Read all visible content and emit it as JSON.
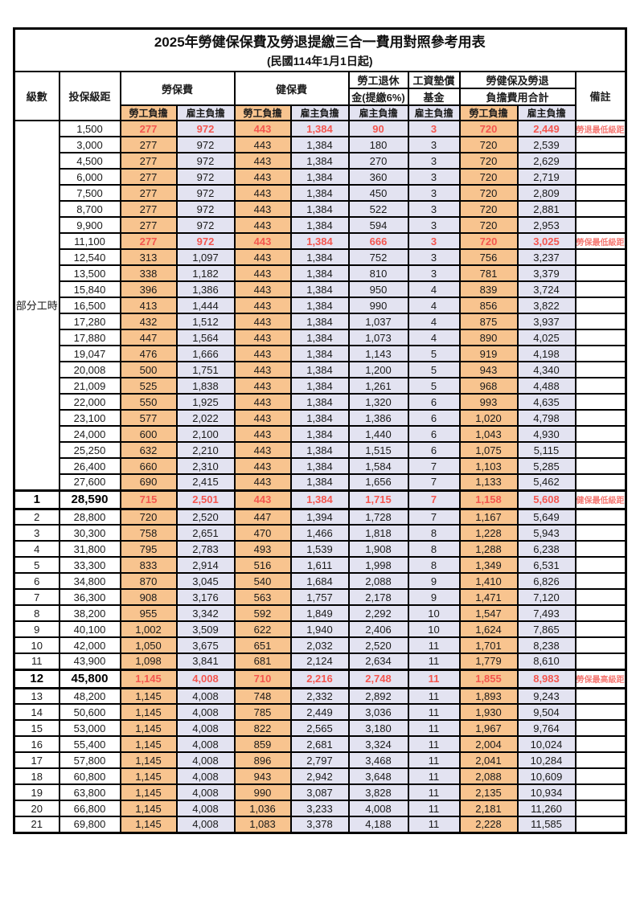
{
  "table": {
    "title": "2025年勞健保保費及勞退提繳三合一費用對照參考用表",
    "subtitle": "(民國114年1月1日起)",
    "headers": {
      "level": "級數",
      "bracket": "投保級距",
      "labor_fee": "勞保費",
      "health_fee": "健保費",
      "pension_line1": "勞工退休",
      "pension_line2": "金(提繳6%)",
      "wage_fund_line1": "工資墊償",
      "wage_fund_line2": "基金",
      "total_line1": "勞健保及勞退",
      "total_line2": "負擔費用合計",
      "employee": "勞工負擔",
      "employer": "雇主負擔",
      "remark": "備註"
    },
    "group_label": "部分工時",
    "group_rowspan": 23,
    "colors": {
      "employee_bg": "#f8c48f",
      "employer_bg": "#e3e3f1",
      "highlight_text": "#f4564f",
      "remark_text": "#f57a74",
      "border": "#000000"
    },
    "rows": [
      {
        "level": "",
        "bracket": "1,500",
        "v": [
          "277",
          "972",
          "443",
          "1,384",
          "90",
          "3",
          "720",
          "2,449"
        ],
        "remark": "勞退最低級距",
        "hl": true,
        "strong": false
      },
      {
        "level": "",
        "bracket": "3,000",
        "v": [
          "277",
          "972",
          "443",
          "1,384",
          "180",
          "3",
          "720",
          "2,539"
        ],
        "remark": "",
        "hl": false,
        "strong": false
      },
      {
        "level": "",
        "bracket": "4,500",
        "v": [
          "277",
          "972",
          "443",
          "1,384",
          "270",
          "3",
          "720",
          "2,629"
        ],
        "remark": "",
        "hl": false,
        "strong": false
      },
      {
        "level": "",
        "bracket": "6,000",
        "v": [
          "277",
          "972",
          "443",
          "1,384",
          "360",
          "3",
          "720",
          "2,719"
        ],
        "remark": "",
        "hl": false,
        "strong": false
      },
      {
        "level": "",
        "bracket": "7,500",
        "v": [
          "277",
          "972",
          "443",
          "1,384",
          "450",
          "3",
          "720",
          "2,809"
        ],
        "remark": "",
        "hl": false,
        "strong": false
      },
      {
        "level": "",
        "bracket": "8,700",
        "v": [
          "277",
          "972",
          "443",
          "1,384",
          "522",
          "3",
          "720",
          "2,881"
        ],
        "remark": "",
        "hl": false,
        "strong": false
      },
      {
        "level": "",
        "bracket": "9,900",
        "v": [
          "277",
          "972",
          "443",
          "1,384",
          "594",
          "3",
          "720",
          "2,953"
        ],
        "remark": "",
        "hl": false,
        "strong": false
      },
      {
        "level": "",
        "bracket": "11,100",
        "v": [
          "277",
          "972",
          "443",
          "1,384",
          "666",
          "3",
          "720",
          "3,025"
        ],
        "remark": "勞保最低級距",
        "hl": true,
        "strong": false
      },
      {
        "level": "",
        "bracket": "12,540",
        "v": [
          "313",
          "1,097",
          "443",
          "1,384",
          "752",
          "3",
          "756",
          "3,237"
        ],
        "remark": "",
        "hl": false,
        "strong": false
      },
      {
        "level": "",
        "bracket": "13,500",
        "v": [
          "338",
          "1,182",
          "443",
          "1,384",
          "810",
          "3",
          "781",
          "3,379"
        ],
        "remark": "",
        "hl": false,
        "strong": false
      },
      {
        "level": "",
        "bracket": "15,840",
        "v": [
          "396",
          "1,386",
          "443",
          "1,384",
          "950",
          "4",
          "839",
          "3,724"
        ],
        "remark": "",
        "hl": false,
        "strong": false
      },
      {
        "level": "",
        "bracket": "16,500",
        "v": [
          "413",
          "1,444",
          "443",
          "1,384",
          "990",
          "4",
          "856",
          "3,822"
        ],
        "remark": "",
        "hl": false,
        "strong": false
      },
      {
        "level": "",
        "bracket": "17,280",
        "v": [
          "432",
          "1,512",
          "443",
          "1,384",
          "1,037",
          "4",
          "875",
          "3,937"
        ],
        "remark": "",
        "hl": false,
        "strong": false
      },
      {
        "level": "",
        "bracket": "17,880",
        "v": [
          "447",
          "1,564",
          "443",
          "1,384",
          "1,073",
          "4",
          "890",
          "4,025"
        ],
        "remark": "",
        "hl": false,
        "strong": false
      },
      {
        "level": "",
        "bracket": "19,047",
        "v": [
          "476",
          "1,666",
          "443",
          "1,384",
          "1,143",
          "5",
          "919",
          "4,198"
        ],
        "remark": "",
        "hl": false,
        "strong": false
      },
      {
        "level": "",
        "bracket": "20,008",
        "v": [
          "500",
          "1,751",
          "443",
          "1,384",
          "1,200",
          "5",
          "943",
          "4,340"
        ],
        "remark": "",
        "hl": false,
        "strong": false
      },
      {
        "level": "",
        "bracket": "21,009",
        "v": [
          "525",
          "1,838",
          "443",
          "1,384",
          "1,261",
          "5",
          "968",
          "4,488"
        ],
        "remark": "",
        "hl": false,
        "strong": false
      },
      {
        "level": "",
        "bracket": "22,000",
        "v": [
          "550",
          "1,925",
          "443",
          "1,384",
          "1,320",
          "6",
          "993",
          "4,635"
        ],
        "remark": "",
        "hl": false,
        "strong": false
      },
      {
        "level": "",
        "bracket": "23,100",
        "v": [
          "577",
          "2,022",
          "443",
          "1,384",
          "1,386",
          "6",
          "1,020",
          "4,798"
        ],
        "remark": "",
        "hl": false,
        "strong": false
      },
      {
        "level": "",
        "bracket": "24,000",
        "v": [
          "600",
          "2,100",
          "443",
          "1,384",
          "1,440",
          "6",
          "1,043",
          "4,930"
        ],
        "remark": "",
        "hl": false,
        "strong": false
      },
      {
        "level": "",
        "bracket": "25,250",
        "v": [
          "632",
          "2,210",
          "443",
          "1,384",
          "1,515",
          "6",
          "1,075",
          "5,115"
        ],
        "remark": "",
        "hl": false,
        "strong": false
      },
      {
        "level": "",
        "bracket": "26,400",
        "v": [
          "660",
          "2,310",
          "443",
          "1,384",
          "1,584",
          "7",
          "1,103",
          "5,285"
        ],
        "remark": "",
        "hl": false,
        "strong": false
      },
      {
        "level": "",
        "bracket": "27,600",
        "v": [
          "690",
          "2,415",
          "443",
          "1,384",
          "1,656",
          "7",
          "1,133",
          "5,462"
        ],
        "remark": "",
        "hl": false,
        "strong": false
      },
      {
        "level": "1",
        "bracket": "28,590",
        "v": [
          "715",
          "2,501",
          "443",
          "1,384",
          "1,715",
          "7",
          "1,158",
          "5,608"
        ],
        "remark": "健保最低級距",
        "hl": true,
        "strong": true
      },
      {
        "level": "2",
        "bracket": "28,800",
        "v": [
          "720",
          "2,520",
          "447",
          "1,394",
          "1,728",
          "7",
          "1,167",
          "5,649"
        ],
        "remark": "",
        "hl": false,
        "strong": false
      },
      {
        "level": "3",
        "bracket": "30,300",
        "v": [
          "758",
          "2,651",
          "470",
          "1,466",
          "1,818",
          "8",
          "1,228",
          "5,943"
        ],
        "remark": "",
        "hl": false,
        "strong": false
      },
      {
        "level": "4",
        "bracket": "31,800",
        "v": [
          "795",
          "2,783",
          "493",
          "1,539",
          "1,908",
          "8",
          "1,288",
          "6,238"
        ],
        "remark": "",
        "hl": false,
        "strong": false
      },
      {
        "level": "5",
        "bracket": "33,300",
        "v": [
          "833",
          "2,914",
          "516",
          "1,611",
          "1,998",
          "8",
          "1,349",
          "6,531"
        ],
        "remark": "",
        "hl": false,
        "strong": false
      },
      {
        "level": "6",
        "bracket": "34,800",
        "v": [
          "870",
          "3,045",
          "540",
          "1,684",
          "2,088",
          "9",
          "1,410",
          "6,826"
        ],
        "remark": "",
        "hl": false,
        "strong": false
      },
      {
        "level": "7",
        "bracket": "36,300",
        "v": [
          "908",
          "3,176",
          "563",
          "1,757",
          "2,178",
          "9",
          "1,471",
          "7,120"
        ],
        "remark": "",
        "hl": false,
        "strong": false
      },
      {
        "level": "8",
        "bracket": "38,200",
        "v": [
          "955",
          "3,342",
          "592",
          "1,849",
          "2,292",
          "10",
          "1,547",
          "7,493"
        ],
        "remark": "",
        "hl": false,
        "strong": false
      },
      {
        "level": "9",
        "bracket": "40,100",
        "v": [
          "1,002",
          "3,509",
          "622",
          "1,940",
          "2,406",
          "10",
          "1,624",
          "7,865"
        ],
        "remark": "",
        "hl": false,
        "strong": false
      },
      {
        "level": "10",
        "bracket": "42,000",
        "v": [
          "1,050",
          "3,675",
          "651",
          "2,032",
          "2,520",
          "11",
          "1,701",
          "8,238"
        ],
        "remark": "",
        "hl": false,
        "strong": false
      },
      {
        "level": "11",
        "bracket": "43,900",
        "v": [
          "1,098",
          "3,841",
          "681",
          "2,124",
          "2,634",
          "11",
          "1,779",
          "8,610"
        ],
        "remark": "",
        "hl": false,
        "strong": false
      },
      {
        "level": "12",
        "bracket": "45,800",
        "v": [
          "1,145",
          "4,008",
          "710",
          "2,216",
          "2,748",
          "11",
          "1,855",
          "8,983"
        ],
        "remark": "勞保最高級距",
        "hl": true,
        "strong": true
      },
      {
        "level": "13",
        "bracket": "48,200",
        "v": [
          "1,145",
          "4,008",
          "748",
          "2,332",
          "2,892",
          "11",
          "1,893",
          "9,243"
        ],
        "remark": "",
        "hl": false,
        "strong": false
      },
      {
        "level": "14",
        "bracket": "50,600",
        "v": [
          "1,145",
          "4,008",
          "785",
          "2,449",
          "3,036",
          "11",
          "1,930",
          "9,504"
        ],
        "remark": "",
        "hl": false,
        "strong": false
      },
      {
        "level": "15",
        "bracket": "53,000",
        "v": [
          "1,145",
          "4,008",
          "822",
          "2,565",
          "3,180",
          "11",
          "1,967",
          "9,764"
        ],
        "remark": "",
        "hl": false,
        "strong": false
      },
      {
        "level": "16",
        "bracket": "55,400",
        "v": [
          "1,145",
          "4,008",
          "859",
          "2,681",
          "3,324",
          "11",
          "2,004",
          "10,024"
        ],
        "remark": "",
        "hl": false,
        "strong": false
      },
      {
        "level": "17",
        "bracket": "57,800",
        "v": [
          "1,145",
          "4,008",
          "896",
          "2,797",
          "3,468",
          "11",
          "2,041",
          "10,284"
        ],
        "remark": "",
        "hl": false,
        "strong": false
      },
      {
        "level": "18",
        "bracket": "60,800",
        "v": [
          "1,145",
          "4,008",
          "943",
          "2,942",
          "3,648",
          "11",
          "2,088",
          "10,609"
        ],
        "remark": "",
        "hl": false,
        "strong": false
      },
      {
        "level": "19",
        "bracket": "63,800",
        "v": [
          "1,145",
          "4,008",
          "990",
          "3,087",
          "3,828",
          "11",
          "2,135",
          "10,934"
        ],
        "remark": "",
        "hl": false,
        "strong": false
      },
      {
        "level": "20",
        "bracket": "66,800",
        "v": [
          "1,145",
          "4,008",
          "1,036",
          "3,233",
          "4,008",
          "11",
          "2,181",
          "11,260"
        ],
        "remark": "",
        "hl": false,
        "strong": false
      },
      {
        "level": "21",
        "bracket": "69,800",
        "v": [
          "1,145",
          "4,008",
          "1,083",
          "3,378",
          "4,188",
          "11",
          "2,228",
          "11,585"
        ],
        "remark": "",
        "hl": false,
        "strong": false
      }
    ]
  }
}
